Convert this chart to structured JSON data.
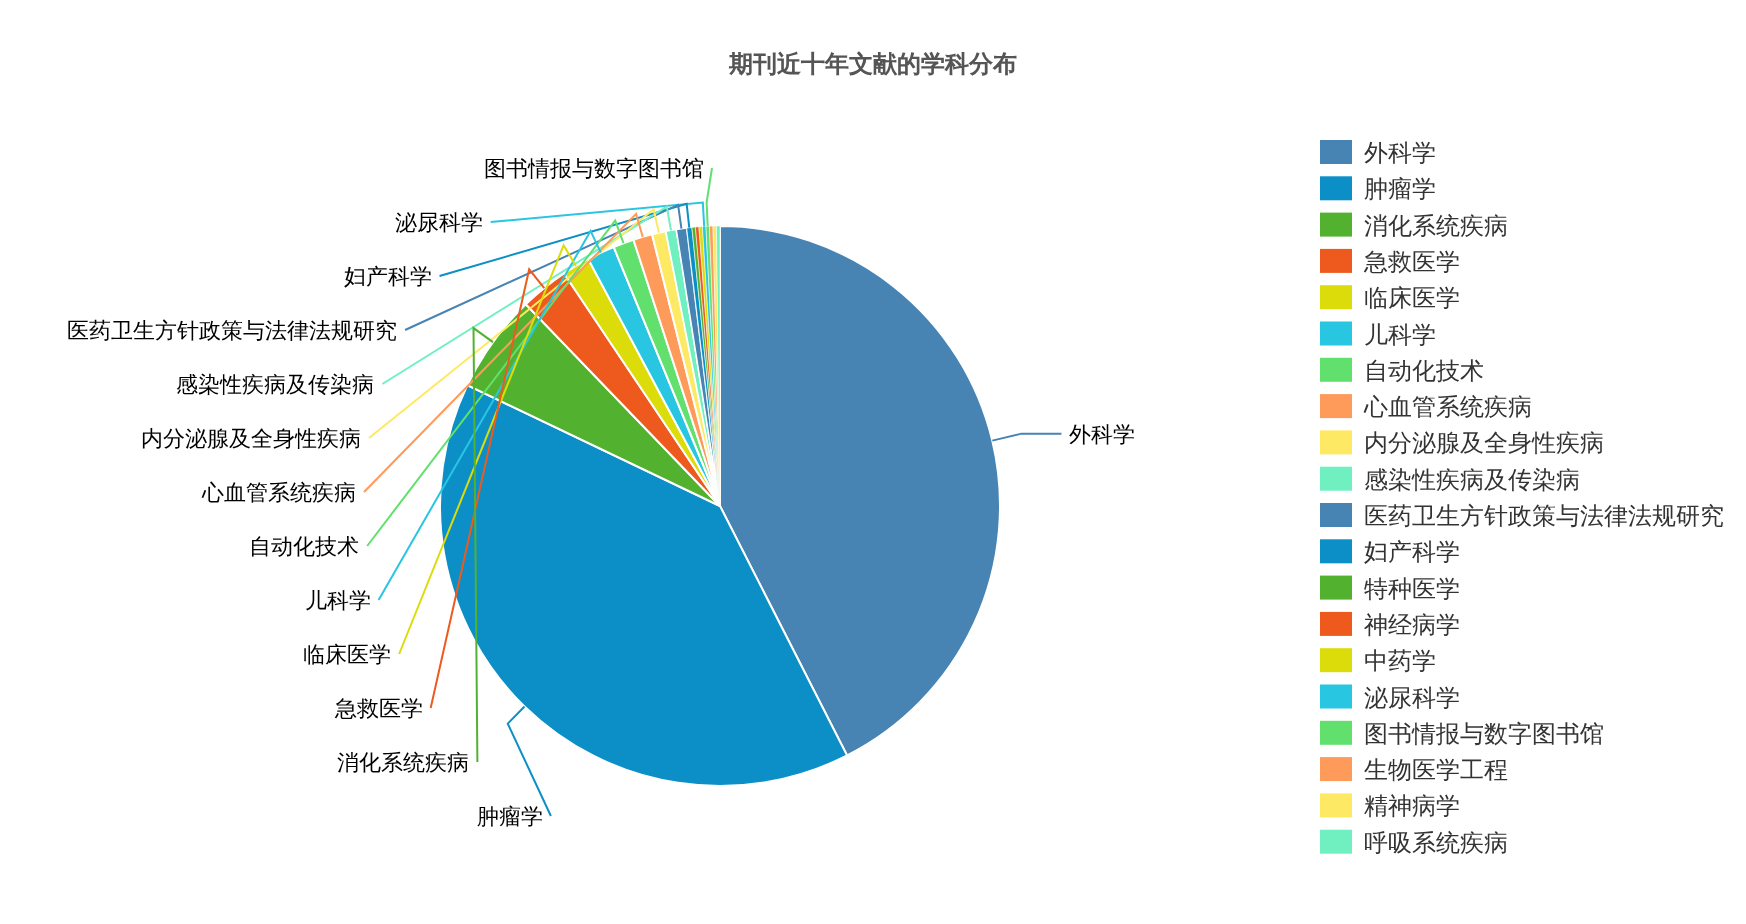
{
  "chart_data": {
    "type": "pie",
    "title": "期刊近十年文献的学科分布",
    "categories": [
      "外科学",
      "肿瘤学",
      "消化系统疾病",
      "急救医学",
      "临床医学",
      "儿科学",
      "自动化技术",
      "心血管系统疾病",
      "内分泌腺及全身性疾病",
      "感染性疾病及传染病",
      "医药卫生方针政策与法律法规研究",
      "妇产科学",
      "特种医学",
      "神经病学",
      "中药学",
      "泌尿科学",
      "图书情报与数字图书馆",
      "生物医学工程",
      "精神病学",
      "呼吸系统疾病"
    ],
    "values": [
      42.5,
      39.6,
      5.7,
      2.8,
      1.6,
      1.6,
      1.2,
      1.1,
      0.8,
      0.6,
      0.6,
      0.3,
      0.2,
      0.2,
      0.2,
      0.2,
      0.2,
      0.2,
      0.2,
      0.2
    ],
    "colors": [
      "#4783b3",
      "#0b8fc6",
      "#52b230",
      "#ee591e",
      "#dcdc0a",
      "#28c6e0",
      "#61e06e",
      "#fe9a5a",
      "#fde963",
      "#70f0c0",
      "#4783b3",
      "#0b8fc6",
      "#52b230",
      "#ee591e",
      "#dcdc0a",
      "#28c6e0",
      "#61e06e",
      "#fe9a5a",
      "#fde963",
      "#70f0c0"
    ],
    "value_labels": [
      "外科学",
      "肿瘤学",
      "消化系统疾病",
      "急救医学",
      "临床医学",
      "儿科学",
      "自动化技术",
      "心血管系统疾病",
      "内分泌腺及全身性疾病",
      "感染性疾病及传染病",
      "医药卫生方针政策与法律法规研究",
      "妇产科学",
      null,
      null,
      null,
      "泌尿科学",
      "图书情报与数字图书馆",
      null,
      null,
      null
    ],
    "legend": "top right"
  }
}
